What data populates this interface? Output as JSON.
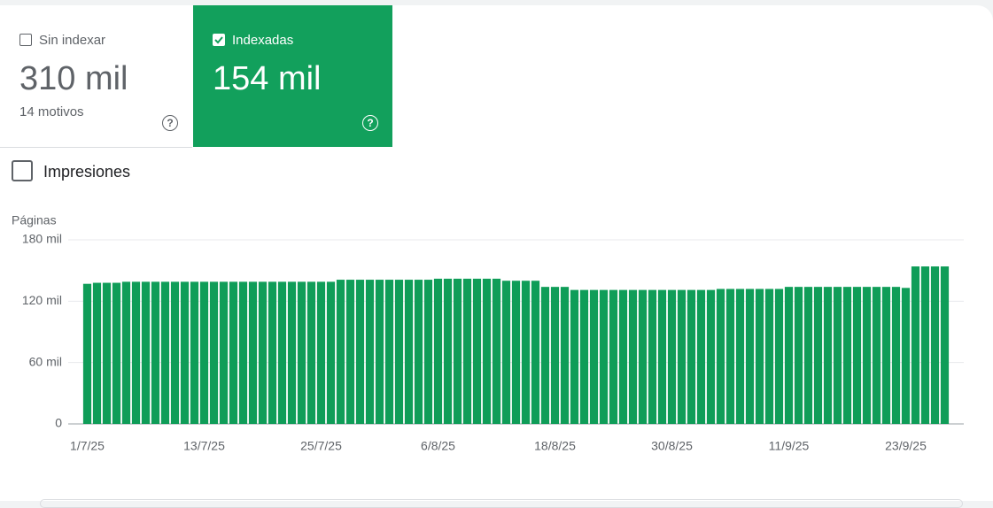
{
  "cards": [
    {
      "label": "Sin indexar",
      "value": "310 mil",
      "sub": "14 motivos"
    },
    {
      "label": "Indexadas",
      "value": "154 mil"
    }
  ],
  "toggle": "Impresiones",
  "chart_data": {
    "type": "bar",
    "y_label": "Páginas",
    "categories": [
      "1/7/25",
      null,
      null,
      null,
      null,
      null,
      null,
      null,
      null,
      null,
      null,
      null,
      "13/7/25",
      null,
      null,
      null,
      null,
      null,
      null,
      null,
      null,
      null,
      null,
      null,
      "25/7/25",
      null,
      null,
      null,
      null,
      null,
      null,
      null,
      null,
      null,
      null,
      null,
      "6/8/25",
      null,
      null,
      null,
      null,
      null,
      null,
      null,
      null,
      null,
      null,
      null,
      "18/8/25",
      null,
      null,
      null,
      null,
      null,
      null,
      null,
      null,
      null,
      null,
      null,
      "30/8/25",
      null,
      null,
      null,
      null,
      null,
      null,
      null,
      null,
      null,
      null,
      null,
      "11/9/25",
      null,
      null,
      null,
      null,
      null,
      null,
      null,
      null,
      null,
      null,
      null,
      "23/9/25",
      null,
      null,
      null,
      null
    ],
    "values": [
      137000,
      138000,
      138000,
      138000,
      139000,
      139000,
      139000,
      139000,
      139000,
      139000,
      139000,
      139000,
      139000,
      139000,
      139000,
      139000,
      139000,
      139000,
      139000,
      139000,
      139000,
      139000,
      139000,
      139000,
      139000,
      139000,
      141000,
      141000,
      141000,
      141000,
      141000,
      141000,
      141000,
      141000,
      141000,
      141000,
      142000,
      142000,
      142000,
      142000,
      142000,
      142000,
      142000,
      140000,
      140000,
      140000,
      140000,
      134000,
      134000,
      134000,
      131000,
      131000,
      131000,
      131000,
      131000,
      131000,
      131000,
      131000,
      131000,
      131000,
      131000,
      131000,
      131000,
      131000,
      131000,
      132000,
      132000,
      132000,
      132000,
      132000,
      132000,
      132000,
      134000,
      134000,
      134000,
      134000,
      134000,
      134000,
      134000,
      134000,
      134000,
      134000,
      134000,
      134000,
      133000,
      154000,
      154000,
      154000,
      154000
    ],
    "color": "#0f9d58",
    "ylim": [
      0,
      180000
    ],
    "yticks": [
      {
        "value": 0,
        "label": "0"
      },
      {
        "value": 60000,
        "label": "60 mil"
      },
      {
        "value": 120000,
        "label": "120 mil"
      },
      {
        "value": 180000,
        "label": "180 mil"
      }
    ],
    "grid": true
  }
}
